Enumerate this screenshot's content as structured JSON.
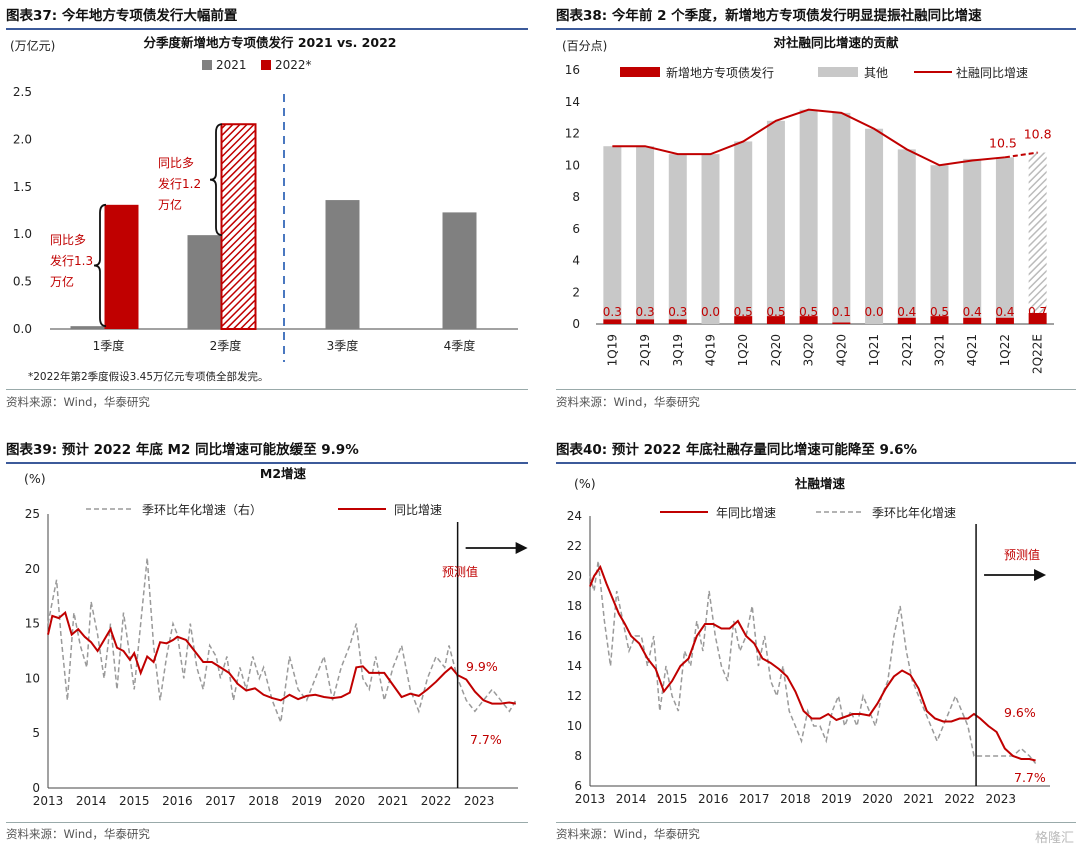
{
  "colors": {
    "red": "#c00000",
    "gray": "#808080",
    "lightgray": "#c8c8c8",
    "dashgray": "#9a9a9a",
    "rule": "#3c5a9a",
    "blue": "#4a78c0"
  },
  "panels": {
    "p37": {
      "title": "图表37:  今年地方专项债发行大幅前置",
      "source": "资料来源：Wind，华泰研究"
    },
    "p38": {
      "title": "图表38:  今年前 2 个季度，新增地方专项债发行明显提振社融同比增速",
      "source": "资料来源：Wind，华泰研究"
    },
    "p39": {
      "title": "图表39:  预计 2022 年底 M2 同比增速可能放缓至 9.9%",
      "source": "资料来源：Wind，华泰研究"
    },
    "p40": {
      "title": "图表40:  预计 2022 年底社融存量同比增速可能降至 9.6%",
      "source": "资料来源：Wind，华泰研究"
    }
  },
  "watermark": "格隆汇",
  "chart_data": [
    {
      "id": "c37",
      "type": "bar",
      "title": "分季度新增地方专项债发行 2021 vs. 2022",
      "ylabel": "(万亿元)",
      "categories": [
        "1季度",
        "2季度",
        "3季度",
        "4季度"
      ],
      "series": [
        {
          "name": "2021",
          "values": [
            0.03,
            0.99,
            1.36,
            1.23
          ]
        },
        {
          "name": "2022*",
          "values": [
            1.31,
            2.16,
            null,
            null
          ]
        }
      ],
      "ylim": [
        0,
        2.5
      ],
      "yticks": [
        "0.0",
        "0.5",
        "1.0",
        "1.5",
        "2.0",
        "2.5"
      ],
      "annotations": [
        {
          "lines": [
            "同比多",
            "发行1.3",
            "万亿"
          ]
        },
        {
          "lines": [
            "同比多",
            "发行1.2",
            "万亿"
          ]
        }
      ],
      "note": "*2022年第2季度假设3.45万亿元专项债全部发完。"
    },
    {
      "id": "c38",
      "type": "bar",
      "title": "对社融同比增速的贡献",
      "ylabel": "(百分点)",
      "categories": [
        "1Q19",
        "2Q19",
        "3Q19",
        "4Q19",
        "1Q20",
        "2Q20",
        "3Q20",
        "4Q20",
        "1Q21",
        "2Q21",
        "3Q21",
        "4Q21",
        "1Q22",
        "2Q22E"
      ],
      "series": [
        {
          "name": "新增地方专项债发行",
          "values": [
            0.3,
            0.3,
            0.3,
            0.0,
            0.5,
            0.5,
            0.5,
            0.1,
            0.0,
            0.4,
            0.5,
            0.4,
            0.4,
            0.7
          ]
        },
        {
          "name": "其他",
          "values": [
            10.9,
            10.9,
            10.4,
            10.7,
            11.0,
            12.3,
            13.0,
            13.2,
            12.3,
            10.6,
            9.5,
            10.0,
            10.1,
            10.1
          ]
        },
        {
          "name": "社融同比增速",
          "values": [
            11.2,
            11.2,
            10.7,
            10.7,
            11.5,
            12.8,
            13.5,
            13.3,
            12.3,
            11.0,
            10.0,
            10.3,
            10.5,
            10.8
          ]
        }
      ],
      "ylim": [
        0,
        16
      ],
      "yticks": [
        "0",
        "2",
        "4",
        "6",
        "8",
        "10",
        "12",
        "14",
        "16"
      ],
      "labels": {
        "last_two": [
          "10.5",
          "10.8"
        ]
      }
    },
    {
      "id": "c39",
      "type": "line",
      "title": "M2增速",
      "ylabel": "(%)",
      "series": [
        {
          "name": "季环比年化增速（右）",
          "x": [
            2013.0,
            2013.1,
            2013.2,
            2013.3,
            2013.45,
            2013.6,
            2013.75,
            2013.9,
            2014.0,
            2014.15,
            2014.3,
            2014.45,
            2014.6,
            2014.75,
            2014.9,
            2015.0,
            2015.15,
            2015.3,
            2015.45,
            2015.6,
            2015.75,
            2015.9,
            2016.0,
            2016.15,
            2016.3,
            2016.45,
            2016.6,
            2016.75,
            2016.9,
            2017.0,
            2017.15,
            2017.3,
            2017.45,
            2017.6,
            2017.75,
            2017.9,
            2018.0,
            2018.2,
            2018.4,
            2018.6,
            2018.8,
            2019.0,
            2019.2,
            2019.4,
            2019.6,
            2019.8,
            2020.0,
            2020.15,
            2020.3,
            2020.45,
            2020.6,
            2020.8,
            2021.0,
            2021.2,
            2021.4,
            2021.6,
            2021.8,
            2022.0,
            2022.2,
            2022.3,
            2022.5,
            2022.7,
            2022.9,
            2023.1,
            2023.3,
            2023.5,
            2023.7,
            2023.85
          ],
          "values": [
            15,
            17,
            19,
            14,
            8,
            16,
            13,
            11,
            17,
            14,
            10,
            15,
            9,
            16,
            12,
            9,
            15,
            21,
            13,
            8,
            12,
            15,
            14,
            10,
            15,
            11,
            9,
            13,
            12,
            10,
            12,
            8,
            11,
            9,
            12,
            10,
            11,
            8,
            6,
            12,
            9,
            8,
            10,
            12,
            8,
            11,
            13,
            15,
            10,
            9,
            12,
            8,
            11,
            13,
            9,
            7,
            10,
            12,
            11,
            13,
            10,
            8,
            7,
            8,
            9,
            8,
            7,
            8
          ]
        },
        {
          "name": "同比增速",
          "x": [
            2013.0,
            2013.1,
            2013.25,
            2013.4,
            2013.55,
            2013.7,
            2013.85,
            2014.0,
            2014.15,
            2014.3,
            2014.45,
            2014.6,
            2014.75,
            2014.9,
            2015.0,
            2015.15,
            2015.3,
            2015.45,
            2015.6,
            2015.75,
            2015.9,
            2016.0,
            2016.2,
            2016.4,
            2016.6,
            2016.8,
            2017.0,
            2017.2,
            2017.4,
            2017.6,
            2017.8,
            2018.0,
            2018.2,
            2018.4,
            2018.6,
            2018.8,
            2019.0,
            2019.2,
            2019.4,
            2019.6,
            2019.8,
            2020.0,
            2020.15,
            2020.3,
            2020.45,
            2020.6,
            2020.8,
            2021.0,
            2021.2,
            2021.4,
            2021.6,
            2021.8,
            2022.0,
            2022.2,
            2022.35,
            2022.5,
            2022.7,
            2022.9,
            2023.1,
            2023.3,
            2023.5,
            2023.7,
            2023.85
          ],
          "values": [
            14,
            15.7,
            15.5,
            16,
            14,
            14.5,
            13.8,
            13.3,
            12.5,
            13.5,
            14.5,
            12.8,
            12.5,
            11.7,
            12.3,
            10.5,
            12,
            11.5,
            13.3,
            13.2,
            13.5,
            13.8,
            13.5,
            12.5,
            11.5,
            11.5,
            11,
            10.5,
            9.5,
            8.9,
            9.1,
            8.5,
            8.2,
            8.0,
            8.5,
            8.1,
            8.4,
            8.5,
            8.3,
            8.2,
            8.3,
            8.7,
            11.0,
            11.1,
            10.5,
            10.5,
            10.5,
            9.4,
            8.3,
            8.6,
            8.4,
            9.0,
            9.7,
            10.5,
            11,
            10.3,
            9.9,
            8.8,
            8.0,
            7.7,
            7.7,
            7.8,
            7.7
          ]
        }
      ],
      "ylim": [
        0,
        25
      ],
      "yticks": [
        "0",
        "5",
        "10",
        "15",
        "20",
        "25"
      ],
      "xticks": [
        "2013",
        "2014",
        "2015",
        "2016",
        "2017",
        "2018",
        "2019",
        "2020",
        "2021",
        "2022",
        "2023"
      ],
      "annotations": [
        "预测值",
        "9.9%",
        "7.7%"
      ]
    },
    {
      "id": "c40",
      "type": "line",
      "title": "社融增速",
      "ylabel": "(%)",
      "series": [
        {
          "name": "年同比增速",
          "x": [
            2013.0,
            2013.1,
            2013.25,
            2013.4,
            2013.55,
            2013.7,
            2013.85,
            2014.0,
            2014.2,
            2014.4,
            2014.6,
            2014.8,
            2015.0,
            2015.2,
            2015.4,
            2015.6,
            2015.8,
            2016.0,
            2016.2,
            2016.4,
            2016.6,
            2016.8,
            2017.0,
            2017.2,
            2017.4,
            2017.6,
            2017.8,
            2018.0,
            2018.2,
            2018.4,
            2018.6,
            2018.8,
            2019.0,
            2019.2,
            2019.4,
            2019.6,
            2019.8,
            2020.0,
            2020.2,
            2020.4,
            2020.6,
            2020.8,
            2021.0,
            2021.2,
            2021.4,
            2021.6,
            2021.8,
            2022.0,
            2022.2,
            2022.35,
            2022.5,
            2022.7,
            2022.9,
            2023.1,
            2023.3,
            2023.5,
            2023.7,
            2023.85
          ],
          "values": [
            19.3,
            20,
            20.6,
            19.5,
            18.5,
            17.5,
            16.8,
            16.0,
            15.5,
            14.5,
            13.8,
            12.3,
            13.0,
            14,
            14.5,
            16,
            16.8,
            16.8,
            16.5,
            16.5,
            17,
            16,
            15.5,
            14.5,
            14.2,
            13.8,
            13.3,
            12.3,
            11.0,
            10.5,
            10.5,
            10.8,
            10.4,
            10.6,
            10.8,
            10.8,
            10.7,
            11.5,
            12.5,
            13.3,
            13.7,
            13.4,
            12.5,
            11.0,
            10.5,
            10.3,
            10.3,
            10.5,
            10.5,
            10.8,
            10.5,
            10.0,
            9.6,
            8.5,
            8.0,
            7.8,
            7.8,
            7.7
          ]
        },
        {
          "name": "季环比年化增速",
          "x": [
            2013.0,
            2013.1,
            2013.2,
            2013.35,
            2013.5,
            2013.65,
            2013.8,
            2013.95,
            2014.1,
            2014.25,
            2014.4,
            2014.55,
            2014.7,
            2014.85,
            2015.0,
            2015.15,
            2015.3,
            2015.45,
            2015.6,
            2015.75,
            2015.9,
            2016.05,
            2016.2,
            2016.35,
            2016.5,
            2016.65,
            2016.8,
            2016.95,
            2017.1,
            2017.25,
            2017.4,
            2017.55,
            2017.7,
            2017.85,
            2018.0,
            2018.15,
            2018.3,
            2018.45,
            2018.6,
            2018.75,
            2018.9,
            2019.05,
            2019.2,
            2019.35,
            2019.5,
            2019.65,
            2019.8,
            2019.95,
            2020.1,
            2020.25,
            2020.4,
            2020.55,
            2020.7,
            2020.85,
            2021.0,
            2021.15,
            2021.3,
            2021.45,
            2021.6,
            2021.75,
            2021.9,
            2022.05,
            2022.2,
            2022.35,
            2022.5,
            2022.7,
            2022.9,
            2023.1,
            2023.3,
            2023.5,
            2023.7,
            2023.85
          ],
          "values": [
            20,
            19,
            21,
            17,
            14,
            19,
            17,
            15,
            16,
            16,
            14,
            16,
            11,
            14,
            12,
            11,
            15,
            14,
            17,
            15,
            19,
            16,
            14,
            13,
            17,
            15,
            16,
            18,
            14,
            16,
            13,
            12,
            14,
            11,
            10,
            9,
            11,
            10,
            10,
            9,
            11,
            12,
            10,
            11,
            10,
            12,
            11,
            10,
            12,
            13,
            16,
            18,
            15,
            13,
            12,
            11,
            10,
            9,
            10,
            11,
            12,
            11,
            10,
            8,
            8,
            8,
            8,
            8,
            8,
            8.5,
            8,
            7.5
          ]
        }
      ],
      "ylim": [
        6,
        24
      ],
      "yticks": [
        "6",
        "8",
        "10",
        "12",
        "14",
        "16",
        "18",
        "20",
        "22",
        "24"
      ],
      "xticks": [
        "2013",
        "2014",
        "2015",
        "2016",
        "2017",
        "2018",
        "2019",
        "2020",
        "2021",
        "2022",
        "2023"
      ],
      "annotations": [
        "预测值",
        "9.6%",
        "7.7%"
      ]
    }
  ]
}
